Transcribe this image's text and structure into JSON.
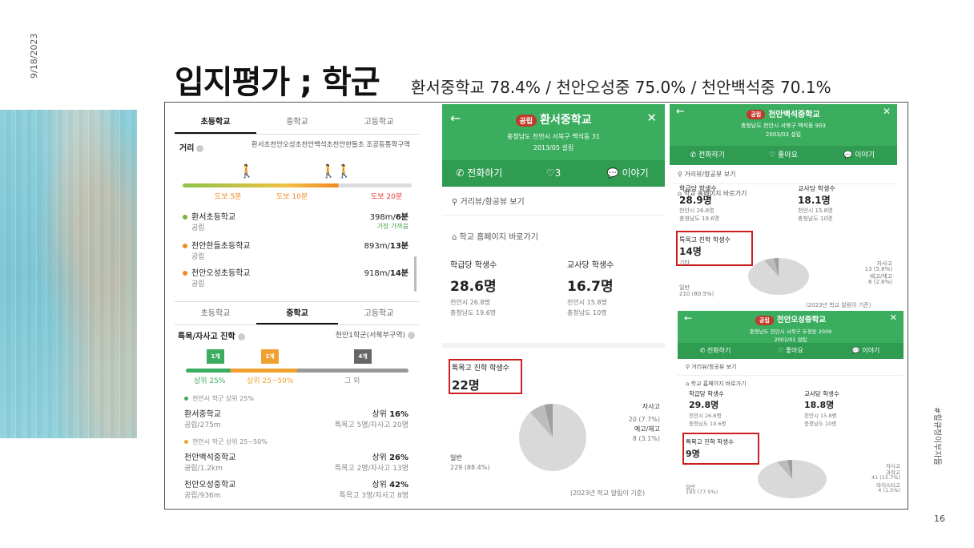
{
  "slide": {
    "date": "9/18/2023",
    "title": "입지평가 ; 학군",
    "subtitle": "환서중학교 78.4% / 천안오성중 75.0% / 천안백석중 70.1%",
    "side_label": "#힐큐정이부자들",
    "page_number": "16"
  },
  "panel1": {
    "tabs": [
      "초등학교",
      "중학교",
      "고등학교"
    ],
    "distance_label": "거리",
    "distance_desc": "환서초천안오성초천안백석초천안한들초 조공동통학구역",
    "walk_labels": [
      "도보 5분",
      "도보 10분",
      "도보 20분"
    ],
    "schools": [
      {
        "name": "환서초등학교",
        "type": "공립",
        "dist": "398m/",
        "time": "6분",
        "note": "가장 가까움",
        "color": "#7cb342"
      },
      {
        "name": "천안한들초등학교",
        "type": "공립",
        "dist": "893m/",
        "time": "13분",
        "note": "",
        "color": "#f08a24"
      },
      {
        "name": "천안오성초등학교",
        "type": "공립",
        "dist": "918m/",
        "time": "14분",
        "note": "",
        "color": "#f08a24"
      }
    ],
    "tabs2": [
      "초등학교",
      "중학교",
      "고등학교"
    ],
    "special_label": "특목/자사고 진학",
    "district": "천안1학군(서북부구역)",
    "flags": [
      "1개",
      "2개",
      "4개"
    ],
    "tier_labels": [
      "상위 25%",
      "상위 25~50%",
      "그 외"
    ],
    "group1": "천안시 학군 상위 25%",
    "group2": "천안시 학군 상위 25~50%",
    "middle_schools": [
      {
        "name": "환서중학교",
        "sub": "공립/275m",
        "rank_label": "상위 ",
        "rank": "16%",
        "detail": "특목고 5명/자사고 20명"
      },
      {
        "name": "천안백석중학교",
        "sub": "공립/1.2km",
        "rank_label": "상위 ",
        "rank": "26%",
        "detail": "특목고 2명/자사고 13명"
      },
      {
        "name": "천안오성중학교",
        "sub": "공립/936m",
        "rank_label": "상위 ",
        "rank": "42%",
        "detail": "특목고 3명/자사고 8명"
      }
    ]
  },
  "panel2": {
    "badge": "공립",
    "name": "환서중학교",
    "address": "충청남도 천안시 서북구 백석동 31",
    "established": "2013/05 설립",
    "actions": [
      "전화하기",
      "3",
      "이야기"
    ],
    "links": [
      "거리뷰/항공뷰 보기",
      "학교 홈페이지 바로가기"
    ],
    "stat1_label": "학급당 학생수",
    "stat1_value": "28.6명",
    "stat1_sub": [
      "천안시 26.8명",
      "충청남도 19.6명"
    ],
    "stat2_label": "교사당 학생수",
    "stat2_value": "16.7명",
    "stat2_sub": [
      "천안시 15.8명",
      "충청남도 10명"
    ],
    "special_label": "특목고 진학 학생수",
    "special_value": "22명",
    "pie_labels": {
      "jasago": "자사고",
      "jasago_val": "20 (7.7%)",
      "yego": "예고/체고",
      "yego_val": "8 (3.1%)",
      "general": "일반",
      "general_val": "229 (88.4%)"
    },
    "source": "(2023년 학교 알림이 기준)"
  },
  "panel3": {
    "badge": "공립",
    "name": "천안백석중학교",
    "address": "충청남도 천안시 서북구 백석동 903",
    "established": "2003/03 설립",
    "actions": [
      "전화하기",
      "좋아요",
      "이야기"
    ],
    "links": [
      "거리뷰/항공뷰 보기",
      "학교 홈페이지 바로가기"
    ],
    "stat1_label": "학급당 학생수",
    "stat1_value": "28.9명",
    "stat1_sub": [
      "천안시 26.8명",
      "충청남도 19.6명"
    ],
    "stat2_label": "교사당 학생수",
    "stat2_value": "18.1명",
    "stat2_sub": [
      "천안시 15.8명",
      "충청남도 10명"
    ],
    "special_label": "특목고 진학 학생수",
    "special_value": "14명",
    "other": "기타",
    "pie_labels": {
      "jasago": "자사고",
      "jasago_val": "13 (5.8%)",
      "yego": "예고/체고",
      "yego_val": "6 (2.6%)",
      "general": "일반",
      "general_val": "210 (80.5%)"
    },
    "source": "(2023년 학교 알림이 기준)"
  },
  "panel4": {
    "badge": "공립",
    "name": "천안오성중학교",
    "address": "충청남도 천안시 서북구 두정동 2009",
    "established": "2001/01 설립",
    "actions": [
      "전화하기",
      "좋아요",
      "이야기"
    ],
    "links": [
      "거리뷰/항공뷰 보기",
      "학교 홈페이지 바로가기"
    ],
    "stat1_label": "학급당 학생수",
    "stat1_value": "29.8명",
    "stat1_sub": [
      "천안시 26.8명",
      "충청남도 19.6명"
    ],
    "stat2_label": "교사당 학생수",
    "stat2_value": "18.8명",
    "stat2_sub": [
      "천안시 15.8명",
      "충청남도 10명"
    ],
    "special_label": "특목고 진학 학생수",
    "special_value": "9명",
    "pie_labels": {
      "l1": "자사고",
      "l2": "과학고",
      "l3": "41 (15.7%)",
      "l4": "마이스터고",
      "l5": "4 (1.5%)",
      "general": "일반",
      "general_val": "193 (77.5%)"
    }
  }
}
